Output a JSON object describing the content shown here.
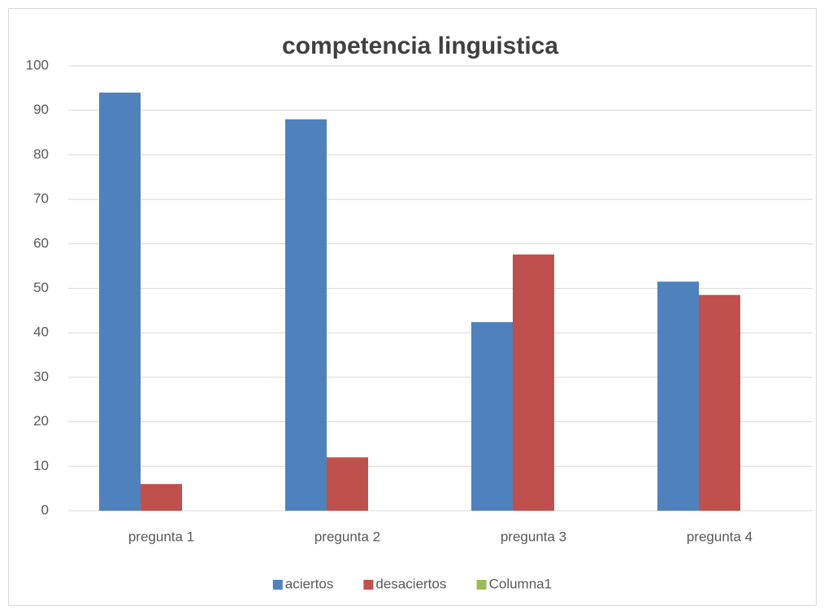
{
  "chart_data": {
    "type": "bar",
    "title": "competencia linguistica",
    "categories": [
      "pregunta 1",
      "pregunta 2",
      "pregunta 3",
      "pregunta 4"
    ],
    "series": [
      {
        "name": "aciertos",
        "color": "#4f81bd",
        "values": [
          94,
          88,
          42.4,
          51.5
        ]
      },
      {
        "name": "desaciertos",
        "color": "#c0504d",
        "values": [
          6,
          12,
          57.6,
          48.5
        ]
      },
      {
        "name": "Columna1",
        "color": "#9bbb59",
        "values": [
          null,
          null,
          null,
          null
        ]
      }
    ],
    "ylim": [
      0,
      100
    ],
    "yticks": [
      0,
      10,
      20,
      30,
      40,
      50,
      60,
      70,
      80,
      90,
      100
    ],
    "grid": true,
    "legend": "bottom"
  }
}
